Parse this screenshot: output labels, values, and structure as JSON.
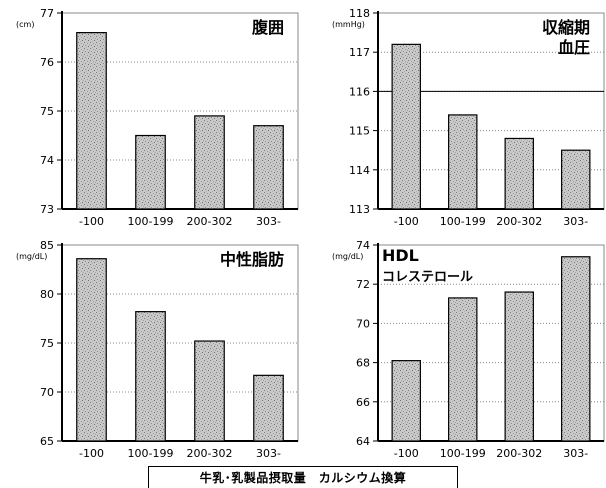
{
  "footer": {
    "xlabel": "牛乳･乳製品摂取量　カルシウム換算"
  },
  "chart_data": [
    {
      "type": "bar",
      "title": "腹囲",
      "title_lines": [
        "腹囲"
      ],
      "unit": "(cm)",
      "categories": [
        "-100",
        "100-199",
        "200-302",
        "303-"
      ],
      "values": [
        76.6,
        74.5,
        74.9,
        74.7
      ],
      "ylim": [
        73,
        77
      ],
      "yticks": [
        73,
        74,
        75,
        76,
        77
      ],
      "grid": "horizontal-dotted",
      "ref_line": null
    },
    {
      "type": "bar",
      "title": "収縮期血圧",
      "title_lines": [
        "収縮期",
        "血圧"
      ],
      "unit": "(mmHg)",
      "categories": [
        "-100",
        "100-199",
        "200-302",
        "303-"
      ],
      "values": [
        117.2,
        115.4,
        114.8,
        114.5
      ],
      "ylim": [
        113,
        118
      ],
      "yticks": [
        113,
        114,
        115,
        116,
        117,
        118
      ],
      "grid": "horizontal-dotted",
      "ref_line": 116
    },
    {
      "type": "bar",
      "title": "中性脂肪",
      "title_lines": [
        "中性脂肪"
      ],
      "unit": "(mg/dL)",
      "categories": [
        "-100",
        "100-199",
        "200-302",
        "303-"
      ],
      "values": [
        83.6,
        78.2,
        75.2,
        71.7
      ],
      "ylim": [
        65,
        85
      ],
      "yticks": [
        65,
        70,
        75,
        80,
        85
      ],
      "grid": "horizontal-dotted",
      "ref_line": null
    },
    {
      "type": "bar",
      "title": "HDLコレステロール",
      "title_lines": [
        "HDL",
        "コレステロール"
      ],
      "unit": "(mg/dL)",
      "categories": [
        "-100",
        "100-199",
        "200-302",
        "303-"
      ],
      "values": [
        68.1,
        71.3,
        71.6,
        73.4
      ],
      "ylim": [
        64,
        74
      ],
      "yticks": [
        64,
        66,
        68,
        70,
        72,
        74
      ],
      "grid": "horizontal-dotted",
      "ref_line": null
    }
  ]
}
